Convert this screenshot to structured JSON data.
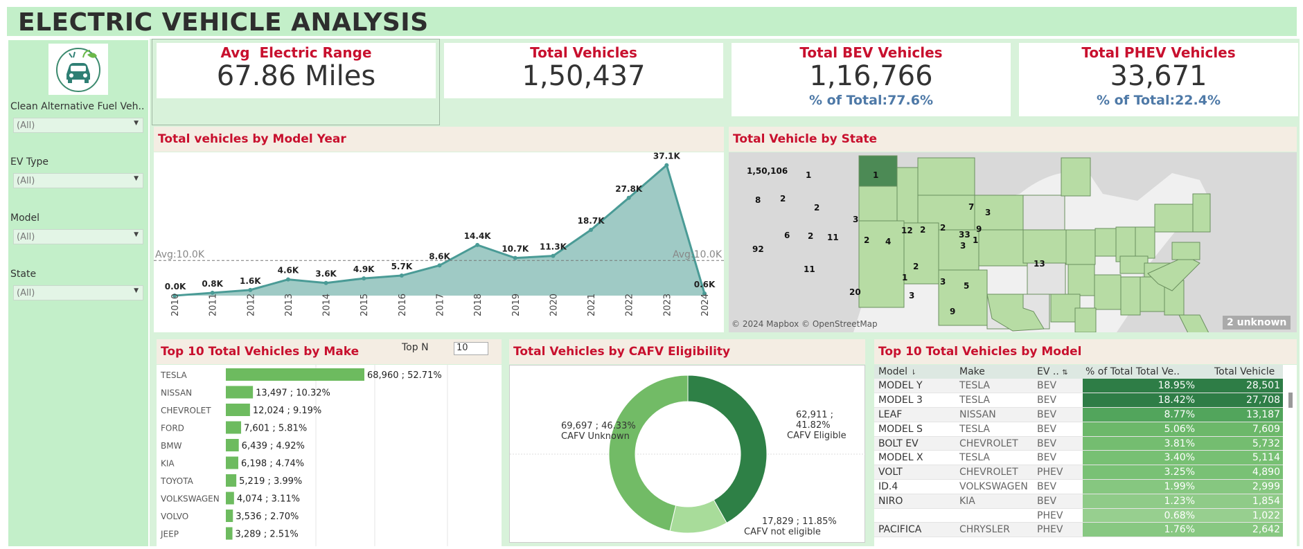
{
  "title": "ELECTRIC VEHICLE ANALYSIS",
  "filters": [
    {
      "label": "Clean Alternative Fuel Veh..",
      "value": "(All)"
    },
    {
      "label": "EV Type",
      "value": "(All)"
    },
    {
      "label": "Model",
      "value": "(All)"
    },
    {
      "label": "State",
      "value": "(All)"
    }
  ],
  "kpis": [
    {
      "label": "Avg  Electric Range",
      "value": "67.86 Miles"
    },
    {
      "label": "Total Vehicles",
      "value": "1,50,437"
    },
    {
      "label": "Total BEV Vehicles",
      "value": "1,16,766",
      "pct": "% of Total:77.6%"
    },
    {
      "label": "Total PHEV Vehicles",
      "value": "33,671",
      "pct": "% of Total:22.4%"
    }
  ],
  "model_year": {
    "title": "Total vehicles by Model Year",
    "avg_left": "Avg:10.0K",
    "avg_right": "Avg:10.0K"
  },
  "map": {
    "title": "Total Vehicle by State",
    "copyright": "© 2024 Mapbox © OpenStreetMap",
    "unknown": "2 unknown",
    "labels": [
      "1,50,106",
      "1",
      "8",
      "2",
      "2",
      "1",
      "3",
      "92",
      "6",
      "2",
      "11",
      "2",
      "4",
      "12",
      "2",
      "2",
      "3",
      "7",
      "3",
      "33",
      "1",
      "9",
      "13",
      "11",
      "2",
      "1",
      "3",
      "5",
      "20",
      "3",
      "9"
    ]
  },
  "make": {
    "title": "Top 10 Total Vehicles by Make",
    "topn_label": "Top N",
    "topn_value": "10"
  },
  "cafv": {
    "title": "Total Vehicles by CAFV Eligibility",
    "labels": [
      {
        "line1": "69,697 ; 46.33%",
        "line2": "CAFV Unknown"
      },
      {
        "line1": "62,911 ; 41.82%",
        "line2": "CAFV Eligible"
      },
      {
        "line1": "17,829 ; 11.85%",
        "line2": "CAFV not eligible"
      }
    ]
  },
  "model_table": {
    "title": "Top 10 Total Vehicles by Model",
    "headers": [
      "Model",
      "Make",
      "EV ..",
      "% of Total Total Ve..",
      "Total Vehicle"
    ],
    "rows": [
      {
        "model": "MODEL Y",
        "make": "TESLA",
        "ev": "BEV",
        "pct": "18.95%",
        "total": "28,501",
        "shade": "#2e7d46"
      },
      {
        "model": "MODEL 3",
        "make": "TESLA",
        "ev": "BEV",
        "pct": "18.42%",
        "total": "27,708",
        "shade": "#2e7d46"
      },
      {
        "model": "LEAF",
        "make": "NISSAN",
        "ev": "BEV",
        "pct": "8.77%",
        "total": "13,187",
        "shade": "#52a55c"
      },
      {
        "model": "MODEL S",
        "make": "TESLA",
        "ev": "BEV",
        "pct": "5.06%",
        "total": "7,609",
        "shade": "#6cb86a"
      },
      {
        "model": "BOLT EV",
        "make": "CHEVROLET",
        "ev": "BEV",
        "pct": "3.81%",
        "total": "5,732",
        "shade": "#74bd70"
      },
      {
        "model": "MODEL X",
        "make": "TESLA",
        "ev": "BEV",
        "pct": "3.40%",
        "total": "5,114",
        "shade": "#77c073"
      },
      {
        "model": "VOLT",
        "make": "CHEVROLET",
        "ev": "PHEV",
        "pct": "3.25%",
        "total": "4,890",
        "shade": "#79c175"
      },
      {
        "model": "ID.4",
        "make": "VOLKSWAGEN",
        "ev": "BEV",
        "pct": "1.99%",
        "total": "2,999",
        "shade": "#86c780"
      },
      {
        "model": "NIRO",
        "make": "KIA",
        "ev": "BEV",
        "pct": "1.23%",
        "total": "1,854",
        "shade": "#8fcb88"
      },
      {
        "model": "",
        "make": "",
        "ev": "PHEV",
        "pct": "0.68%",
        "total": "1,022",
        "shade": "#97cf8f"
      },
      {
        "model": "PACIFICA",
        "make": "CHRYSLER",
        "ev": "PHEV",
        "pct": "1.76%",
        "total": "2,642",
        "shade": "#88c882"
      }
    ]
  },
  "chart_data": [
    {
      "type": "area",
      "title": "Total vehicles by Model Year",
      "x": [
        "2010",
        "2011",
        "2012",
        "2013",
        "2014",
        "2015",
        "2016",
        "2017",
        "2018",
        "2019",
        "2020",
        "2021",
        "2022",
        "2023",
        "2024"
      ],
      "values": [
        0.0,
        0.8,
        1.6,
        4.6,
        3.6,
        4.9,
        5.7,
        8.6,
        14.4,
        10.7,
        11.3,
        18.7,
        27.8,
        37.1,
        0.6
      ],
      "labels": [
        "0.0K",
        "0.8K",
        "1.6K",
        "4.6K",
        "3.6K",
        "4.9K",
        "5.7K",
        "8.6K",
        "14.4K",
        "10.7K",
        "11.3K",
        "18.7K",
        "27.8K",
        "37.1K",
        "0.6K"
      ],
      "ylim": [
        0,
        38
      ],
      "average": 10.0,
      "color": "#4a9b96"
    },
    {
      "type": "bar",
      "title": "Top 10 Total Vehicles by Make",
      "categories": [
        "TESLA",
        "NISSAN",
        "CHEVROLET",
        "FORD",
        "BMW",
        "KIA",
        "TOYOTA",
        "VOLKSWAGEN",
        "VOLVO",
        "JEEP"
      ],
      "values": [
        68960,
        13497,
        12024,
        7601,
        6439,
        6198,
        5219,
        4074,
        3536,
        3289
      ],
      "labels": [
        "68,960 ; 52.71%",
        "13,497 ; 10.32%",
        "12,024 ; 9.19%",
        "7,601 ; 5.81%",
        "6,439 ; 4.92%",
        "6,198 ; 4.74%",
        "5,219 ; 3.99%",
        "4,074 ; 3.11%",
        "3,536 ; 2.70%",
        "3,289 ; 2.51%"
      ],
      "color": "#6dbb5f"
    },
    {
      "type": "pie",
      "title": "Total Vehicles by CAFV Eligibility",
      "categories": [
        "CAFV Unknown",
        "CAFV Eligible",
        "CAFV not eligible"
      ],
      "values": [
        69697,
        62911,
        17829
      ],
      "colors": [
        "#72bb66",
        "#2e8046",
        "#a8dc9a"
      ]
    }
  ]
}
